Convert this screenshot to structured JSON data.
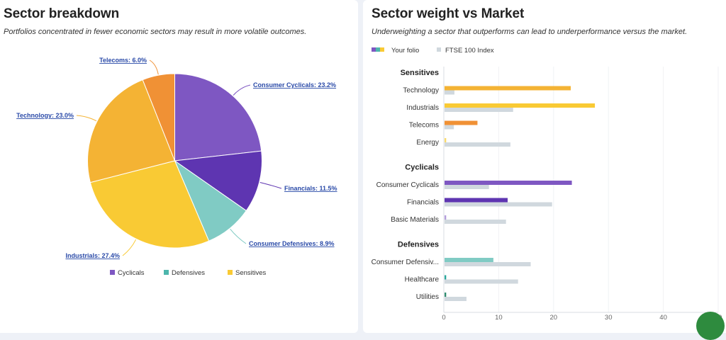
{
  "left_card": {
    "title": "Sector breakdown",
    "subtitle": "Portfolios concentrated in fewer economic sectors may result in more volatile outcomes."
  },
  "right_card": {
    "title": "Sector weight vs Market",
    "subtitle": "Underweighting a sector that outperforms can lead to underperformance versus the market."
  },
  "chart_data": [
    {
      "type": "pie",
      "title": "Sector breakdown",
      "slices": [
        {
          "label": "Consumer Cyclicals",
          "value": 23.2,
          "display": "Consumer Cyclicals: 23.2%",
          "group": "Cyclicals",
          "color": "#7e57c2"
        },
        {
          "label": "Financials",
          "value": 11.5,
          "display": "Financials: 11.5%",
          "group": "Cyclicals",
          "color": "#5e35b1"
        },
        {
          "label": "Consumer Defensives",
          "value": 8.9,
          "display": "Consumer Defensives: 8.9%",
          "group": "Defensives",
          "color": "#80cbc4"
        },
        {
          "label": "Industrials",
          "value": 27.4,
          "display": "Industrials: 27.4%",
          "group": "Sensitives",
          "color": "#f9ca34"
        },
        {
          "label": "Technology",
          "value": 23.0,
          "display": "Technology: 23.0%",
          "group": "Sensitives",
          "color": "#f4b334"
        },
        {
          "label": "Telecoms",
          "value": 6.0,
          "display": "Telecoms: 6.0%",
          "group": "Sensitives",
          "color": "#f09135"
        }
      ],
      "legend": [
        {
          "label": "Cyclicals",
          "color": "#7e57c2"
        },
        {
          "label": "Defensives",
          "color": "#4db6ac"
        },
        {
          "label": "Sensitives",
          "color": "#f9ca34"
        }
      ],
      "legend_position": "bottom"
    },
    {
      "type": "bar",
      "orientation": "horizontal",
      "title": "Sector weight vs Market",
      "legend": [
        {
          "label": "Your folio",
          "colors": [
            "#7e57c2",
            "#4db6ac",
            "#f9ca34"
          ]
        },
        {
          "label": "FTSE 100 Index",
          "color": "#d0d8de"
        }
      ],
      "legend_position": "top-left",
      "xlim": [
        0,
        50
      ],
      "xticks": [
        "0",
        "10",
        "20",
        "30",
        "40",
        "50"
      ],
      "grid": true,
      "groups": [
        {
          "name": "Sensitives",
          "categories": [
            {
              "label": "Technology",
              "folio": 23.0,
              "index": 1.8,
              "color": "#f4b334"
            },
            {
              "label": "Industrials",
              "folio": 27.4,
              "index": 12.5,
              "color": "#f9ca34"
            },
            {
              "label": "Telecoms",
              "folio": 6.0,
              "index": 1.7,
              "color": "#f09135"
            },
            {
              "label": "Energy",
              "folio": 0.3,
              "index": 12.0,
              "color": "#f9da6a"
            }
          ]
        },
        {
          "name": "Cyclicals",
          "categories": [
            {
              "label": "Consumer Cyclicals",
              "folio": 23.2,
              "index": 8.1,
              "color": "#7e57c2"
            },
            {
              "label": "Financials",
              "folio": 11.5,
              "index": 19.6,
              "color": "#5e35b1"
            },
            {
              "label": "Basic Materials",
              "folio": 0.3,
              "index": 11.2,
              "color": "#b39ddb"
            }
          ]
        },
        {
          "name": "Defensives",
          "categories": [
            {
              "label": "Consumer Defensiv...",
              "folio": 8.9,
              "index": 15.7,
              "color": "#80cbc4"
            },
            {
              "label": "Healthcare",
              "folio": 0.3,
              "index": 13.4,
              "color": "#26a69a"
            },
            {
              "label": "Utilities",
              "folio": 0.3,
              "index": 4.0,
              "color": "#2e8b6e"
            }
          ]
        }
      ]
    }
  ]
}
